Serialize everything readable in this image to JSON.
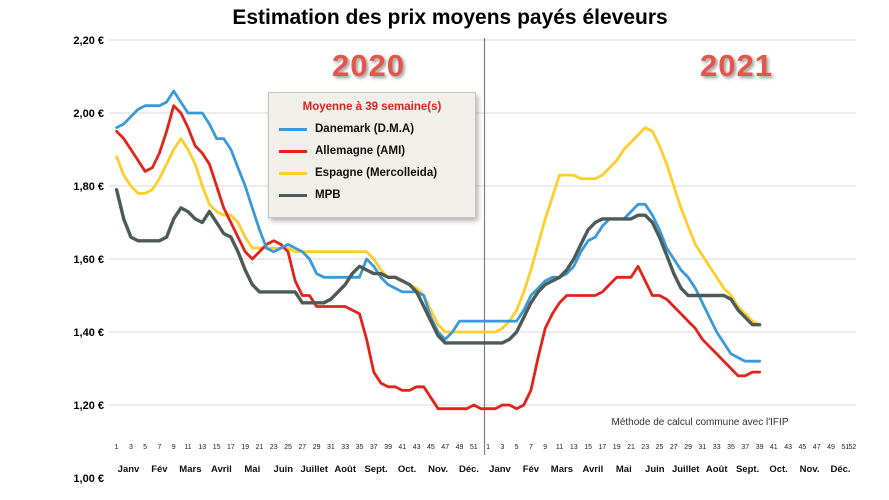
{
  "title": "Estimation des prix moyens payés éleveurs",
  "year_labels": [
    "2020",
    "2021"
  ],
  "legend": {
    "heading": "Moyenne à  39 semaine(s)",
    "items": [
      {
        "id": "danemark",
        "label": "Danemark (D.M.A)",
        "color": "#3a9ad9"
      },
      {
        "id": "allemagne",
        "label": "Allemagne (AMI)",
        "color": "#e3231a"
      },
      {
        "id": "espagne",
        "label": "Espagne (Mercolleida)",
        "color": "#ffce2b"
      },
      {
        "id": "mpb",
        "label": "MPB",
        "color": "#4c5b57"
      }
    ]
  },
  "note": "Méthode de calcul commune avec l'IFIP",
  "chart_data": {
    "type": "line",
    "title": "Estimation des prix moyens payés éleveurs",
    "ylabel": "",
    "xlabel": "",
    "ylim": [
      1.0,
      2.2
    ],
    "ytick_step": 0.2,
    "ytick_labels": [
      "2,20 €",
      "2,00 €",
      "1,80 €",
      "1,60 €",
      "1,40 €",
      "1,20 €",
      "1,00 €"
    ],
    "grid": true,
    "legend_position": "upper-left-overlay",
    "x_axis": {
      "years": [
        {
          "label": "2020",
          "weeks": 52
        },
        {
          "label": "2021",
          "weeks": 52
        }
      ],
      "week_ticks_2020": [
        1,
        3,
        5,
        7,
        9,
        11,
        13,
        15,
        17,
        19,
        21,
        23,
        25,
        27,
        29,
        31,
        33,
        35,
        37,
        39,
        41,
        43,
        45,
        47,
        49,
        51
      ],
      "week_ticks_2021": [
        1,
        3,
        5,
        7,
        9,
        11,
        13,
        15,
        17,
        19,
        21,
        23,
        25,
        27,
        29,
        31,
        33,
        35,
        37,
        39,
        41,
        43,
        45,
        47,
        49,
        51,
        52
      ],
      "months": [
        "Janv",
        "Fév",
        "Mars",
        "Avril",
        "Mai",
        "Juin",
        "Juillet",
        "Août",
        "Sept.",
        "Oct.",
        "Nov.",
        "Déc."
      ]
    },
    "series": [
      {
        "id": "danemark",
        "name": "Danemark (D.M.A)",
        "color": "#3a9ad9",
        "values_2020": [
          1.96,
          1.97,
          1.99,
          2.01,
          2.02,
          2.02,
          2.02,
          2.03,
          2.06,
          2.03,
          2.0,
          2.0,
          2.0,
          1.97,
          1.93,
          1.93,
          1.9,
          1.85,
          1.8,
          1.74,
          1.68,
          1.63,
          1.62,
          1.63,
          1.64,
          1.63,
          1.62,
          1.6,
          1.56,
          1.55,
          1.55,
          1.55,
          1.55,
          1.55,
          1.55,
          1.6,
          1.58,
          1.55,
          1.53,
          1.52,
          1.51,
          1.51,
          1.51,
          1.5,
          1.44,
          1.4,
          1.38,
          1.4,
          1.43,
          1.43,
          1.43,
          1.43
        ],
        "values_2021": [
          1.43,
          1.43,
          1.43,
          1.43,
          1.43,
          1.46,
          1.5,
          1.52,
          1.54,
          1.55,
          1.55,
          1.56,
          1.58,
          1.62,
          1.65,
          1.66,
          1.69,
          1.71,
          1.71,
          1.71,
          1.73,
          1.75,
          1.75,
          1.72,
          1.68,
          1.63,
          1.6,
          1.57,
          1.55,
          1.52,
          1.48,
          1.44,
          1.4,
          1.37,
          1.34,
          1.33,
          1.32,
          1.32,
          1.32
        ]
      },
      {
        "id": "allemagne",
        "name": "Allemagne (AMI)",
        "color": "#e3231a",
        "values_2020": [
          1.95,
          1.93,
          1.9,
          1.87,
          1.84,
          1.85,
          1.89,
          1.95,
          2.02,
          2.0,
          1.96,
          1.91,
          1.89,
          1.86,
          1.8,
          1.74,
          1.7,
          1.66,
          1.62,
          1.6,
          1.62,
          1.64,
          1.65,
          1.64,
          1.62,
          1.54,
          1.5,
          1.5,
          1.47,
          1.47,
          1.47,
          1.47,
          1.47,
          1.46,
          1.45,
          1.38,
          1.29,
          1.26,
          1.25,
          1.25,
          1.24,
          1.24,
          1.25,
          1.25,
          1.22,
          1.19,
          1.19,
          1.19,
          1.19,
          1.19,
          1.2,
          1.19
        ],
        "values_2021": [
          1.19,
          1.19,
          1.2,
          1.2,
          1.19,
          1.2,
          1.24,
          1.33,
          1.41,
          1.45,
          1.48,
          1.5,
          1.5,
          1.5,
          1.5,
          1.5,
          1.51,
          1.53,
          1.55,
          1.55,
          1.55,
          1.58,
          1.54,
          1.5,
          1.5,
          1.49,
          1.47,
          1.45,
          1.43,
          1.41,
          1.38,
          1.36,
          1.34,
          1.32,
          1.3,
          1.28,
          1.28,
          1.29,
          1.29
        ]
      },
      {
        "id": "espagne",
        "name": "Espagne (Mercolleida)",
        "color": "#ffce2b",
        "values_2020": [
          1.88,
          1.83,
          1.8,
          1.78,
          1.78,
          1.79,
          1.82,
          1.86,
          1.9,
          1.93,
          1.9,
          1.86,
          1.8,
          1.75,
          1.73,
          1.72,
          1.72,
          1.7,
          1.66,
          1.63,
          1.63,
          1.63,
          1.63,
          1.63,
          1.63,
          1.62,
          1.62,
          1.62,
          1.62,
          1.62,
          1.62,
          1.62,
          1.62,
          1.62,
          1.62,
          1.62,
          1.6,
          1.57,
          1.55,
          1.55,
          1.54,
          1.53,
          1.52,
          1.5,
          1.46,
          1.42,
          1.4,
          1.4,
          1.4,
          1.4,
          1.4,
          1.4
        ],
        "values_2021": [
          1.4,
          1.4,
          1.41,
          1.43,
          1.46,
          1.51,
          1.57,
          1.64,
          1.71,
          1.77,
          1.83,
          1.83,
          1.83,
          1.82,
          1.82,
          1.82,
          1.83,
          1.85,
          1.87,
          1.9,
          1.92,
          1.94,
          1.96,
          1.95,
          1.91,
          1.86,
          1.8,
          1.74,
          1.69,
          1.64,
          1.61,
          1.58,
          1.55,
          1.52,
          1.5,
          1.47,
          1.45,
          1.43,
          1.42
        ]
      },
      {
        "id": "mpb",
        "name": "MPB",
        "color": "#4c5b57",
        "values_2020": [
          1.79,
          1.71,
          1.66,
          1.65,
          1.65,
          1.65,
          1.65,
          1.66,
          1.71,
          1.74,
          1.73,
          1.71,
          1.7,
          1.73,
          1.7,
          1.67,
          1.66,
          1.62,
          1.57,
          1.53,
          1.51,
          1.51,
          1.51,
          1.51,
          1.51,
          1.51,
          1.48,
          1.48,
          1.48,
          1.48,
          1.49,
          1.51,
          1.53,
          1.56,
          1.58,
          1.57,
          1.56,
          1.56,
          1.55,
          1.55,
          1.54,
          1.53,
          1.51,
          1.47,
          1.43,
          1.39,
          1.37,
          1.37,
          1.37,
          1.37,
          1.37,
          1.37
        ],
        "values_2021": [
          1.37,
          1.37,
          1.37,
          1.38,
          1.4,
          1.44,
          1.48,
          1.51,
          1.53,
          1.54,
          1.55,
          1.57,
          1.6,
          1.64,
          1.68,
          1.7,
          1.71,
          1.71,
          1.71,
          1.71,
          1.71,
          1.72,
          1.72,
          1.7,
          1.66,
          1.61,
          1.56,
          1.52,
          1.5,
          1.5,
          1.5,
          1.5,
          1.5,
          1.5,
          1.49,
          1.46,
          1.44,
          1.42,
          1.42
        ]
      }
    ]
  }
}
